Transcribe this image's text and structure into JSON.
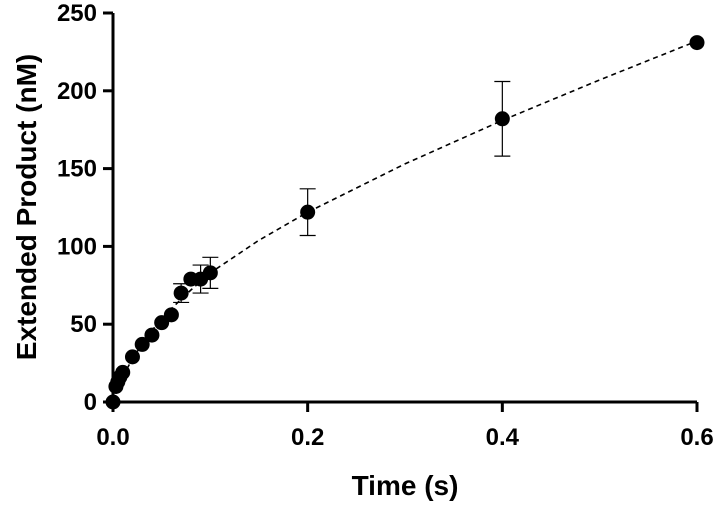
{
  "chart_data": {
    "type": "scatter",
    "xlabel": "Time (s)",
    "ylabel": "Extended Product (nM)",
    "xlim": [
      0,
      0.6
    ],
    "ylim": [
      0,
      250
    ],
    "x_ticks": [
      "0.0",
      "0.2",
      "0.4",
      "0.6"
    ],
    "y_ticks": [
      "0",
      "50",
      "100",
      "150",
      "200",
      "250"
    ],
    "grid": false,
    "legend": "none",
    "series": [
      {
        "points": [
          {
            "x": 0.0,
            "y": 0
          },
          {
            "x": 0.003,
            "y": 10
          },
          {
            "x": 0.005,
            "y": 13
          },
          {
            "x": 0.007,
            "y": 16
          },
          {
            "x": 0.01,
            "y": 19
          },
          {
            "x": 0.02,
            "y": 29
          },
          {
            "x": 0.03,
            "y": 37
          },
          {
            "x": 0.04,
            "y": 43
          },
          {
            "x": 0.05,
            "y": 51
          },
          {
            "x": 0.06,
            "y": 56
          },
          {
            "x": 0.07,
            "y": 70,
            "err": 6
          },
          {
            "x": 0.08,
            "y": 79
          },
          {
            "x": 0.09,
            "y": 79,
            "err": 9
          },
          {
            "x": 0.1,
            "y": 83,
            "err": 10
          },
          {
            "x": 0.2,
            "y": 122,
            "err": 15
          },
          {
            "x": 0.4,
            "y": 182,
            "err": 24
          },
          {
            "x": 0.6,
            "y": 231
          }
        ],
        "fit": {
          "style": "dashed",
          "points": [
            [
              0.0,
              0
            ],
            [
              0.01,
              16
            ],
            [
              0.02,
              28
            ],
            [
              0.04,
              46
            ],
            [
              0.06,
              60
            ],
            [
              0.08,
              72
            ],
            [
              0.1,
              83
            ],
            [
              0.15,
              104
            ],
            [
              0.2,
              122
            ],
            [
              0.3,
              153
            ],
            [
              0.4,
              181
            ],
            [
              0.5,
              207
            ],
            [
              0.6,
              232
            ]
          ]
        }
      }
    ]
  }
}
